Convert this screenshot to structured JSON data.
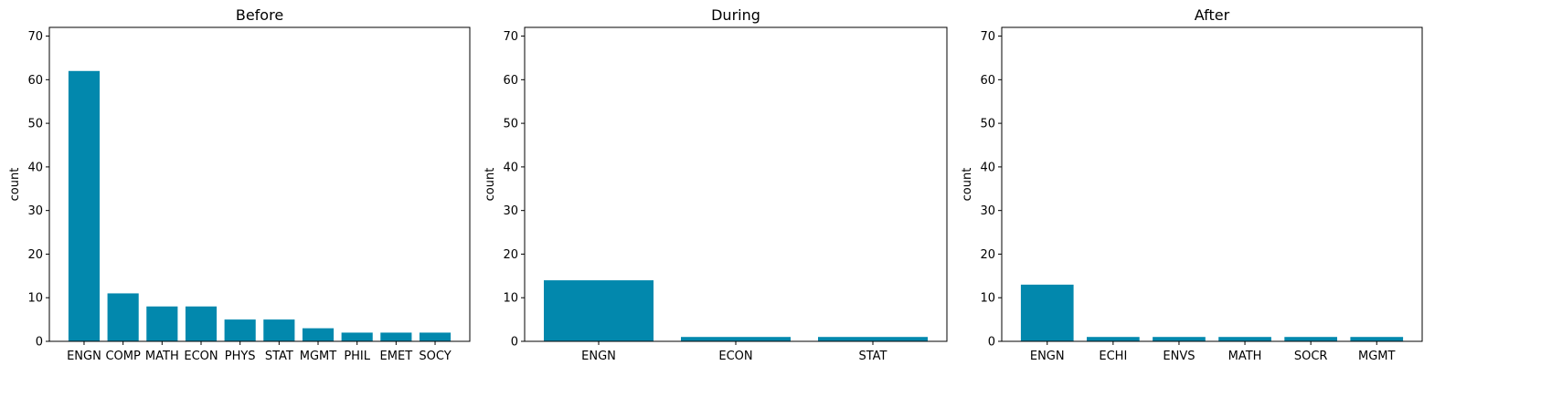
{
  "chart_data": [
    {
      "type": "bar",
      "title": "Before",
      "ylabel": "count",
      "ylim": [
        0,
        72
      ],
      "yticks": [
        0,
        10,
        20,
        30,
        40,
        50,
        60,
        70
      ],
      "categories": [
        "ENGN",
        "COMP",
        "MATH",
        "ECON",
        "PHYS",
        "STAT",
        "MGMT",
        "PHIL",
        "EMET",
        "SOCY"
      ],
      "values": [
        62,
        11,
        8,
        8,
        5,
        5,
        3,
        2,
        2,
        2
      ],
      "color": "#0288AD"
    },
    {
      "type": "bar",
      "title": "During",
      "ylabel": "count",
      "ylim": [
        0,
        72
      ],
      "yticks": [
        0,
        10,
        20,
        30,
        40,
        50,
        60,
        70
      ],
      "categories": [
        "ENGN",
        "ECON",
        "STAT"
      ],
      "values": [
        14,
        1,
        1
      ],
      "color": "#0288AD"
    },
    {
      "type": "bar",
      "title": "After",
      "ylabel": "count",
      "ylim": [
        0,
        72
      ],
      "yticks": [
        0,
        10,
        20,
        30,
        40,
        50,
        60,
        70
      ],
      "categories": [
        "ENGN",
        "ECHI",
        "ENVS",
        "MATH",
        "SOCR",
        "MGMT"
      ],
      "values": [
        13,
        1,
        1,
        1,
        1,
        1
      ],
      "color": "#0288AD"
    }
  ]
}
